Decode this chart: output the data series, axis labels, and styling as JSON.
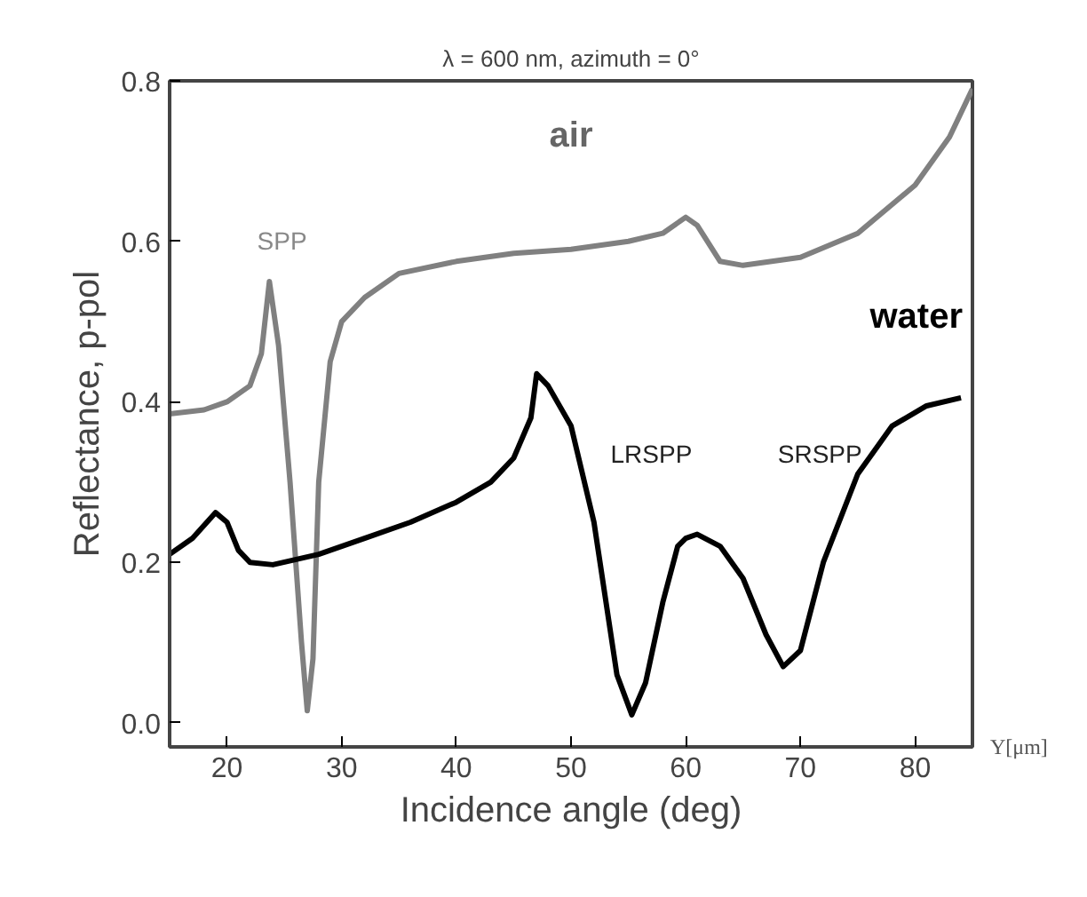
{
  "chart_data": {
    "type": "line",
    "title": "λ = 600 nm, azimuth = 0°",
    "xlabel": "Incidence angle (deg)",
    "ylabel": "Reflectance, p-pol",
    "xlim": [
      15,
      85
    ],
    "ylim": [
      -0.03,
      0.8
    ],
    "xticks": [
      20,
      30,
      40,
      50,
      60,
      70,
      80
    ],
    "yticks": [
      {
        "value": 0,
        "label": "0.0"
      },
      0.2,
      0.4,
      0.6,
      0.8
    ],
    "grid": false,
    "legend": false,
    "line_style": "solid",
    "marker": "none",
    "series": [
      {
        "name": "air",
        "color": "#808080",
        "x": [
          15,
          18,
          20,
          22,
          23,
          23.7,
          24.5,
          25.5,
          26.5,
          27,
          27.5,
          28,
          29,
          30,
          32,
          35,
          40,
          45,
          50,
          55,
          58,
          60,
          61,
          63,
          65,
          70,
          75,
          80,
          83,
          85
        ],
        "values": [
          0.385,
          0.39,
          0.4,
          0.42,
          0.46,
          0.55,
          0.47,
          0.3,
          0.1,
          0.015,
          0.08,
          0.3,
          0.45,
          0.5,
          0.53,
          0.56,
          0.575,
          0.585,
          0.59,
          0.6,
          0.61,
          0.63,
          0.62,
          0.575,
          0.57,
          0.58,
          0.61,
          0.67,
          0.73,
          0.79
        ]
      },
      {
        "name": "water",
        "color": "#000000",
        "x": [
          15,
          17,
          19,
          20,
          21,
          22,
          24,
          28,
          32,
          36,
          40,
          43,
          45,
          46.5,
          47,
          48,
          50,
          52,
          54,
          55.3,
          56.5,
          58,
          59.3,
          60,
          61,
          63,
          65,
          67,
          68.5,
          70,
          72,
          75,
          78,
          81,
          84
        ],
        "values": [
          0.21,
          0.23,
          0.262,
          0.25,
          0.215,
          0.2,
          0.197,
          0.21,
          0.23,
          0.25,
          0.275,
          0.3,
          0.33,
          0.38,
          0.435,
          0.42,
          0.37,
          0.25,
          0.06,
          0.01,
          0.05,
          0.15,
          0.22,
          0.23,
          0.235,
          0.22,
          0.18,
          0.11,
          0.07,
          0.09,
          0.2,
          0.31,
          0.37,
          0.395,
          0.405
        ]
      }
    ],
    "annotations": [
      "SPP",
      "LRSPP",
      "SRSPP",
      "Y[μm]"
    ]
  }
}
